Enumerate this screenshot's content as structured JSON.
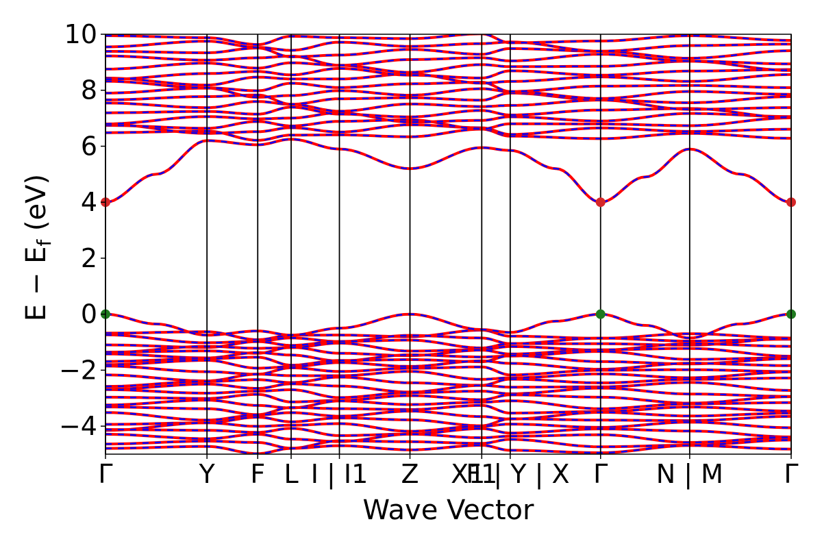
{
  "chart_data": {
    "type": "line",
    "title": "",
    "xlabel": "Wave Vector",
    "ylabel": "E − E_f (eV)",
    "ylabel_parts": {
      "main": "E − E",
      "sub": "f",
      "unit": " (eV)"
    },
    "ylim": [
      -5,
      10
    ],
    "yticks": [
      -4,
      -2,
      0,
      2,
      4,
      6,
      8,
      10
    ],
    "ytick_labels": [
      "−4",
      "−2",
      "0",
      "2",
      "4",
      "6",
      "8",
      "10"
    ],
    "x_range": [
      0,
      5.54
    ],
    "kpoints": [
      {
        "x": 0.0,
        "label": "Γ"
      },
      {
        "x": 0.82,
        "label": "Y"
      },
      {
        "x": 1.23,
        "label": "F"
      },
      {
        "x": 1.5,
        "label": "L"
      },
      {
        "x": 1.89,
        "label": "I | I1"
      },
      {
        "x": 2.46,
        "label": "Z"
      },
      {
        "x": 3.04,
        "label": "F1"
      },
      {
        "x": 3.27,
        "label": "X1 | Y | X"
      },
      {
        "x": 4.0,
        "label": "Γ"
      },
      {
        "x": 4.72,
        "label": "N | M"
      },
      {
        "x": 5.54,
        "label": "Γ"
      }
    ],
    "band_gap_markers": {
      "cbm": {
        "color": "#d62728",
        "points": [
          [
            0.0,
            4.0
          ],
          [
            4.0,
            4.0
          ],
          [
            5.54,
            4.0
          ]
        ]
      },
      "vbm": {
        "color": "#1f7a1f",
        "points": [
          [
            0.0,
            0.0
          ],
          [
            4.0,
            0.0
          ],
          [
            5.54,
            0.0
          ]
        ]
      }
    },
    "series": [
      {
        "name": "",
        "color": "#ff0000",
        "style": "solid"
      },
      {
        "name": "",
        "color": "#0000ff",
        "style": "dashed"
      }
    ],
    "highlighted_bands": {
      "conduction_band_minimum": [
        [
          0.0,
          4.0
        ],
        [
          0.41,
          5.0
        ],
        [
          0.82,
          6.2
        ],
        [
          1.23,
          6.05
        ],
        [
          1.5,
          6.25
        ],
        [
          1.89,
          5.9
        ],
        [
          2.46,
          5.2
        ],
        [
          3.04,
          5.95
        ],
        [
          3.27,
          5.85
        ],
        [
          3.64,
          5.2
        ],
        [
          4.0,
          4.0
        ],
        [
          4.36,
          4.9
        ],
        [
          4.72,
          5.9
        ],
        [
          5.13,
          5.0
        ],
        [
          5.54,
          4.0
        ]
      ],
      "valence_band_maximum": [
        [
          0.0,
          0.0
        ],
        [
          0.41,
          -0.35
        ],
        [
          0.82,
          -0.75
        ],
        [
          1.23,
          -0.6
        ],
        [
          1.5,
          -0.75
        ],
        [
          1.89,
          -0.5
        ],
        [
          2.46,
          0.0
        ],
        [
          3.04,
          -0.55
        ],
        [
          3.27,
          -0.65
        ],
        [
          3.64,
          -0.25
        ],
        [
          4.0,
          0.0
        ],
        [
          4.36,
          -0.4
        ],
        [
          4.72,
          -0.85
        ],
        [
          5.13,
          -0.35
        ],
        [
          5.54,
          0.0
        ]
      ]
    },
    "valence_band_levels": [
      -0.75,
      -0.9,
      -1.05,
      -1.2,
      -1.35,
      -1.5,
      -1.65,
      -1.8,
      -2.0,
      -2.2,
      -2.4,
      -2.6,
      -2.8,
      -3.0,
      -3.2,
      -3.4,
      -3.6,
      -3.8,
      -4.0,
      -4.2,
      -4.4,
      -4.6,
      -4.8
    ],
    "conduction_band_levels": [
      6.4,
      6.6,
      6.8,
      7.0,
      7.2,
      7.45,
      7.7,
      7.9,
      8.15,
      8.4,
      8.6,
      8.85,
      9.1,
      9.35,
      9.6,
      9.85
    ],
    "grid": false,
    "legend": "none"
  }
}
